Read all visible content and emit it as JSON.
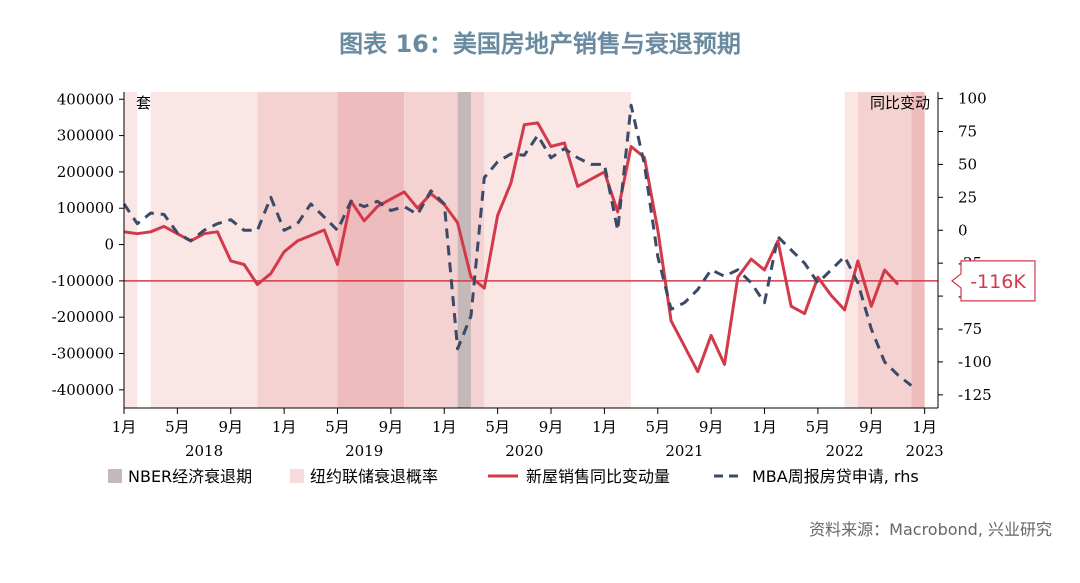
{
  "title": "图表 16：美国房地产销售与衰退预期",
  "source": "资料来源：Macrobond, 兴业研究",
  "colors": {
    "new_home_line": "#d23a4b",
    "mba_line": "#3b4a66",
    "nber_shade": "#c4b8b8",
    "prob_light": "#fbe6e6",
    "prob_mid": "#f5d2d2",
    "prob_dark": "#eebcbc",
    "ref_line": "#d23a4b",
    "callout": "#d23a4b"
  },
  "chart_data": {
    "type": "line",
    "left_axis": {
      "unit_label": "套",
      "ticks": [
        400000,
        300000,
        200000,
        100000,
        0,
        -100000,
        -200000,
        -300000,
        -400000
      ],
      "tick_labels": [
        "400000",
        "300000",
        "200000",
        "100000",
        "0",
        "-100000",
        "-200000",
        "-300000",
        "-400000"
      ],
      "range": [
        -450000,
        420000
      ]
    },
    "right_axis": {
      "unit_label": "同比变动",
      "ticks": [
        100,
        75,
        50,
        25,
        0,
        -25,
        -50,
        -75,
        -100,
        -125
      ],
      "tick_labels": [
        "100",
        "75",
        "50",
        "25",
        "0",
        "-25",
        "-50",
        "-75",
        "-100",
        "-125"
      ],
      "range": [
        -135,
        105
      ]
    },
    "x_axis": {
      "start": "2018-01",
      "end": "2023-02",
      "month_ticks": [
        {
          "date": "2018-01",
          "label": "1月"
        },
        {
          "date": "2018-05",
          "label": "5月"
        },
        {
          "date": "2018-09",
          "label": "9月"
        },
        {
          "date": "2019-01",
          "label": "1月"
        },
        {
          "date": "2019-05",
          "label": "5月"
        },
        {
          "date": "2019-09",
          "label": "9月"
        },
        {
          "date": "2020-01",
          "label": "1月"
        },
        {
          "date": "2020-05",
          "label": "5月"
        },
        {
          "date": "2020-09",
          "label": "9月"
        },
        {
          "date": "2021-01",
          "label": "1月"
        },
        {
          "date": "2021-05",
          "label": "5月"
        },
        {
          "date": "2021-09",
          "label": "9月"
        },
        {
          "date": "2022-01",
          "label": "1月"
        },
        {
          "date": "2022-05",
          "label": "5月"
        },
        {
          "date": "2022-09",
          "label": "9月"
        },
        {
          "date": "2023-01",
          "label": "1月"
        }
      ],
      "year_labels": [
        {
          "date": "2018-07",
          "label": "2018"
        },
        {
          "date": "2019-07",
          "label": "2019"
        },
        {
          "date": "2020-07",
          "label": "2020"
        },
        {
          "date": "2021-07",
          "label": "2021"
        },
        {
          "date": "2022-07",
          "label": "2022"
        },
        {
          "date": "2023-01",
          "label": "2023"
        }
      ]
    },
    "reference_line": {
      "value": -100000,
      "label": "-116K"
    },
    "shading": [
      {
        "from": "2017-12",
        "to": "2018-02",
        "level": "light"
      },
      {
        "from": "2018-03",
        "to": "2018-11",
        "level": "light"
      },
      {
        "from": "2018-11",
        "to": "2019-05",
        "level": "mid"
      },
      {
        "from": "2019-05",
        "to": "2019-10",
        "level": "dark"
      },
      {
        "from": "2019-10",
        "to": "2020-02",
        "level": "mid"
      },
      {
        "from": "2020-02",
        "to": "2020-03",
        "level": "nber"
      },
      {
        "from": "2020-03",
        "to": "2020-04",
        "level": "mid"
      },
      {
        "from": "2020-04",
        "to": "2021-03",
        "level": "light"
      },
      {
        "from": "2022-07",
        "to": "2022-08",
        "level": "light"
      },
      {
        "from": "2022-08",
        "to": "2022-12",
        "level": "mid"
      },
      {
        "from": "2022-12",
        "to": "2023-01",
        "level": "dark"
      }
    ],
    "series": [
      {
        "name": "新屋销售同比变动量",
        "axis": "left",
        "style": "solid",
        "x": [
          "2018-01",
          "2018-02",
          "2018-03",
          "2018-04",
          "2018-05",
          "2018-06",
          "2018-07",
          "2018-08",
          "2018-09",
          "2018-10",
          "2018-11",
          "2018-12",
          "2019-01",
          "2019-02",
          "2019-03",
          "2019-04",
          "2019-05",
          "2019-06",
          "2019-07",
          "2019-08",
          "2019-09",
          "2019-10",
          "2019-11",
          "2019-12",
          "2020-01",
          "2020-02",
          "2020-03",
          "2020-04",
          "2020-05",
          "2020-06",
          "2020-07",
          "2020-08",
          "2020-09",
          "2020-10",
          "2020-11",
          "2020-12",
          "2021-01",
          "2021-02",
          "2021-03",
          "2021-04",
          "2021-05",
          "2021-06",
          "2021-07",
          "2021-08",
          "2021-09",
          "2021-10",
          "2021-11",
          "2021-12",
          "2022-01",
          "2022-02",
          "2022-03",
          "2022-04",
          "2022-05",
          "2022-06",
          "2022-07",
          "2022-08",
          "2022-09",
          "2022-10",
          "2022-11",
          "2022-12"
        ],
        "values": [
          35000,
          30000,
          35000,
          50000,
          30000,
          10000,
          30000,
          35000,
          -45000,
          -55000,
          -110000,
          -80000,
          -20000,
          10000,
          25000,
          40000,
          -55000,
          120000,
          65000,
          105000,
          125000,
          145000,
          100000,
          140000,
          110000,
          60000,
          -90000,
          -120000,
          80000,
          170000,
          330000,
          335000,
          270000,
          280000,
          160000,
          180000,
          200000,
          90000,
          270000,
          240000,
          40000,
          -210000,
          -280000,
          -350000,
          -250000,
          -330000,
          -90000,
          -40000,
          -70000,
          10000,
          -170000,
          -190000,
          -90000,
          -140000,
          -180000,
          -45000,
          -170000,
          -70000,
          -110000,
          null
        ],
        "color": "#d23a4b"
      },
      {
        "name": "MBA周报房贷申请, rhs",
        "axis": "right",
        "style": "dashed",
        "x": [
          "2018-01",
          "2018-02",
          "2018-03",
          "2018-04",
          "2018-05",
          "2018-06",
          "2018-07",
          "2018-08",
          "2018-09",
          "2018-10",
          "2018-11",
          "2018-12",
          "2019-01",
          "2019-02",
          "2019-03",
          "2019-04",
          "2019-05",
          "2019-06",
          "2019-07",
          "2019-08",
          "2019-09",
          "2019-10",
          "2019-11",
          "2019-12",
          "2020-01",
          "2020-02",
          "2020-03",
          "2020-04",
          "2020-05",
          "2020-06",
          "2020-07",
          "2020-08",
          "2020-09",
          "2020-10",
          "2020-11",
          "2020-12",
          "2021-01",
          "2021-02",
          "2021-03",
          "2021-04",
          "2021-05",
          "2021-06",
          "2021-07",
          "2021-08",
          "2021-09",
          "2021-10",
          "2021-11",
          "2021-12",
          "2022-01",
          "2022-02",
          "2022-03",
          "2022-04",
          "2022-05",
          "2022-06",
          "2022-07",
          "2022-08",
          "2022-09",
          "2022-10",
          "2022-11",
          "2022-12"
        ],
        "values": [
          20,
          5,
          13,
          12,
          -2,
          -8,
          0,
          5,
          8,
          0,
          0,
          25,
          0,
          5,
          20,
          10,
          0,
          22,
          18,
          22,
          15,
          18,
          12,
          30,
          20,
          -90,
          -65,
          40,
          52,
          58,
          57,
          72,
          55,
          62,
          55,
          50,
          50,
          0,
          95,
          50,
          -20,
          -60,
          -55,
          -45,
          -30,
          -35,
          -30,
          -40,
          -55,
          -5,
          -15,
          -25,
          -40,
          -30,
          -20,
          -40,
          -75,
          -100,
          -110,
          -118
        ],
        "color": "#3b4a66"
      }
    ],
    "legend": {
      "placement": "bottom",
      "items": [
        {
          "label": "NBER经济衰退期",
          "kind": "box",
          "color": "#c4b8b8"
        },
        {
          "label": "纽约联储衰退概率",
          "kind": "box",
          "color": "#f8dcdc"
        },
        {
          "label": "新屋销售同比变动量",
          "kind": "solid",
          "color": "#d23a4b"
        },
        {
          "label": "MBA周报房贷申请, rhs",
          "kind": "dashed",
          "color": "#3b4a66"
        }
      ]
    }
  }
}
